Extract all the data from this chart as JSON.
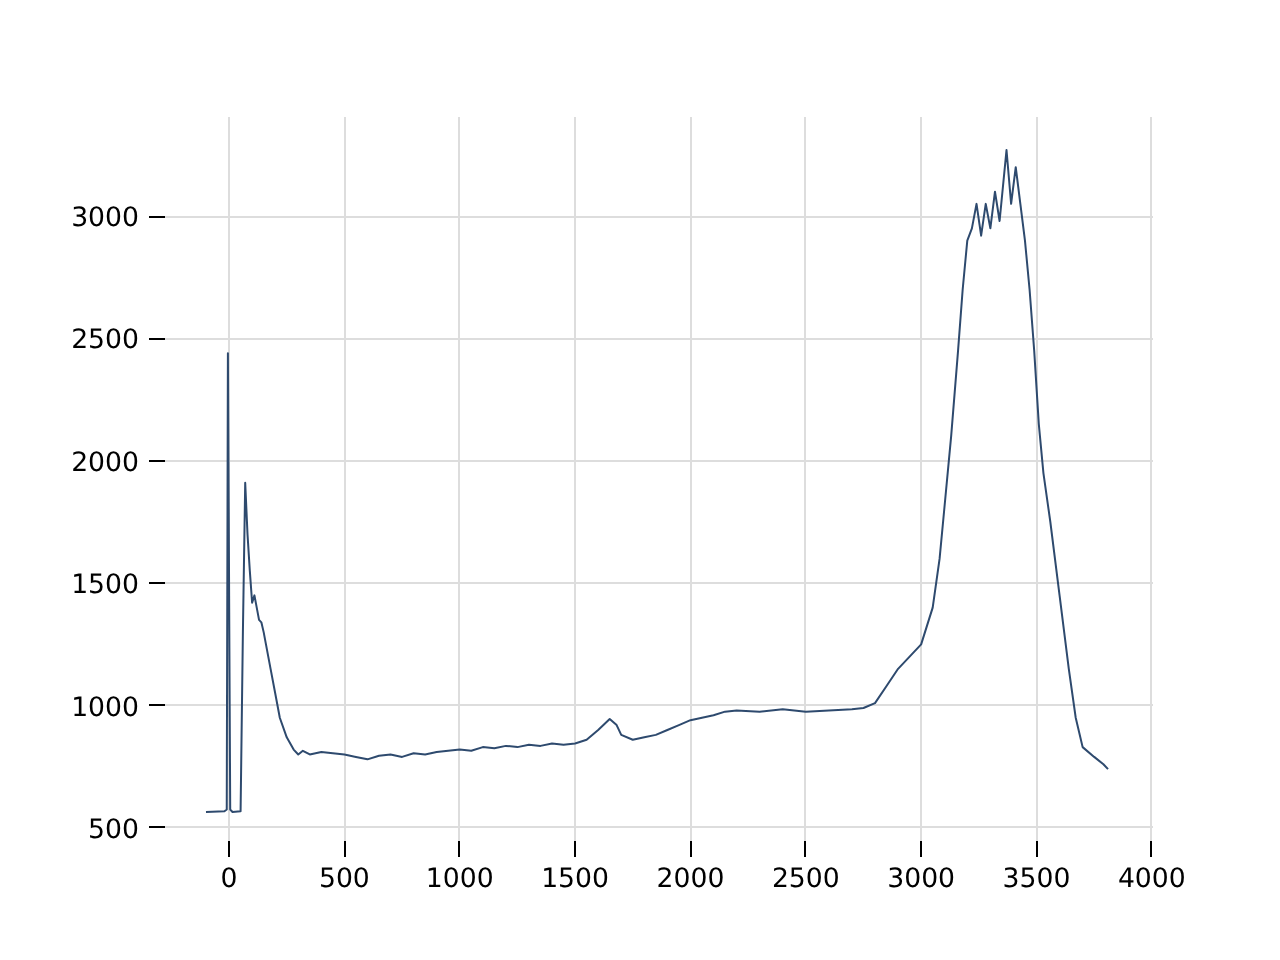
{
  "chart_data": {
    "type": "line",
    "color": "#2e4a6e",
    "grid": true,
    "xlim": [
      -295,
      4005
    ],
    "ylim": [
      430,
      3405
    ],
    "xticks": [
      0,
      500,
      1000,
      1500,
      2000,
      2500,
      3000,
      3500,
      4000
    ],
    "yticks": [
      500,
      1000,
      1500,
      2000,
      2500,
      3000
    ],
    "x": [
      -100,
      -20,
      -10,
      -5,
      5,
      15,
      50,
      60,
      70,
      80,
      90,
      100,
      110,
      120,
      130,
      140,
      150,
      160,
      170,
      180,
      200,
      220,
      250,
      280,
      300,
      320,
      350,
      400,
      450,
      500,
      550,
      600,
      650,
      700,
      750,
      800,
      850,
      900,
      950,
      1000,
      1050,
      1100,
      1150,
      1200,
      1250,
      1300,
      1350,
      1400,
      1450,
      1500,
      1550,
      1600,
      1650,
      1680,
      1700,
      1750,
      1800,
      1850,
      1900,
      1950,
      2000,
      2050,
      2100,
      2150,
      2200,
      2300,
      2400,
      2500,
      2600,
      2700,
      2750,
      2800,
      2850,
      2900,
      2950,
      3000,
      3050,
      3080,
      3100,
      3130,
      3160,
      3180,
      3200,
      3220,
      3240,
      3260,
      3280,
      3300,
      3320,
      3340,
      3370,
      3390,
      3410,
      3430,
      3450,
      3470,
      3490,
      3510,
      3530,
      3560,
      3600,
      3640,
      3670,
      3700,
      3750,
      3790,
      3810
    ],
    "values": [
      565,
      568,
      575,
      2440,
      575,
      565,
      568,
      1300,
      1910,
      1700,
      1550,
      1420,
      1450,
      1400,
      1350,
      1340,
      1300,
      1250,
      1200,
      1150,
      1050,
      950,
      870,
      820,
      800,
      815,
      800,
      810,
      805,
      800,
      790,
      780,
      795,
      800,
      790,
      805,
      800,
      810,
      815,
      820,
      815,
      830,
      825,
      835,
      830,
      840,
      835,
      845,
      840,
      845,
      860,
      900,
      945,
      920,
      880,
      860,
      870,
      880,
      900,
      920,
      940,
      950,
      960,
      975,
      980,
      975,
      985,
      975,
      980,
      985,
      990,
      1010,
      1080,
      1150,
      1200,
      1250,
      1400,
      1600,
      1800,
      2100,
      2450,
      2700,
      2900,
      2950,
      3050,
      2920,
      3050,
      2950,
      3100,
      2980,
      3270,
      3050,
      3200,
      3050,
      2900,
      2700,
      2450,
      2150,
      1950,
      1750,
      1450,
      1150,
      950,
      830,
      790,
      760,
      740
    ]
  }
}
